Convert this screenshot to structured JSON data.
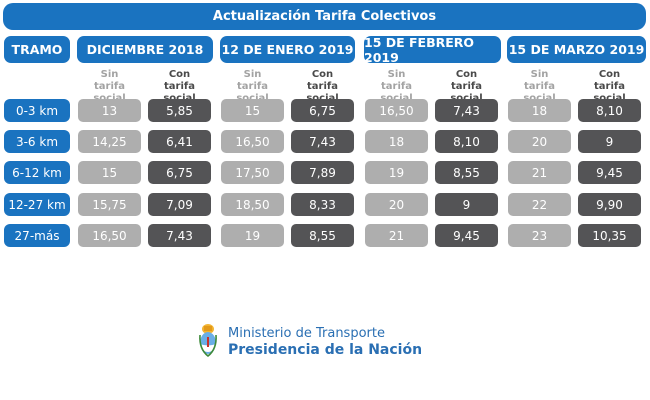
{
  "title": "Actualización Tarifa Colectivos",
  "tramo_header": "TRAMO",
  "periods": [
    "DICIEMBRE 2018",
    "12 DE ENERO 2019",
    "15 DE FEBRERO 2019",
    "15 DE MARZO 2019"
  ],
  "subheaders": {
    "sin": [
      "Sin",
      "tarifa social"
    ],
    "con": [
      "Con",
      "tarifa social"
    ]
  },
  "rows": [
    {
      "tramo": "0-3 km",
      "values": [
        "13",
        "5,85",
        "15",
        "6,75",
        "16,50",
        "7,43",
        "18",
        "8,10"
      ]
    },
    {
      "tramo": "3-6 km",
      "values": [
        "14,25",
        "6,41",
        "16,50",
        "7,43",
        "18",
        "8,10",
        "20",
        "9"
      ]
    },
    {
      "tramo": "6-12 km",
      "values": [
        "15",
        "6,75",
        "17,50",
        "7,89",
        "19",
        "8,55",
        "21",
        "9,45"
      ]
    },
    {
      "tramo": "12-27 km",
      "values": [
        "15,75",
        "7,09",
        "18,50",
        "8,33",
        "20",
        "9",
        "22",
        "9,90"
      ]
    },
    {
      "tramo": "27-más",
      "values": [
        "16,50",
        "7,43",
        "19",
        "8,55",
        "21",
        "9,45",
        "23",
        "10,35"
      ]
    }
  ],
  "org": {
    "line1": "Ministerio de Transporte",
    "line2": "Presidencia de la Nación"
  },
  "colors": {
    "brand_blue": "#1a73c0",
    "sin_cell": "#aeaeae",
    "con_cell": "#545456"
  }
}
